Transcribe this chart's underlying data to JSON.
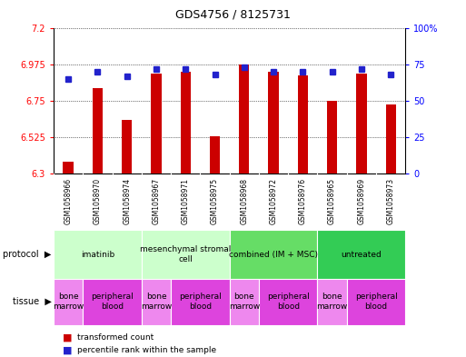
{
  "title": "GDS4756 / 8125731",
  "samples": [
    "GSM1058966",
    "GSM1058970",
    "GSM1058974",
    "GSM1058967",
    "GSM1058971",
    "GSM1058975",
    "GSM1058968",
    "GSM1058972",
    "GSM1058976",
    "GSM1058965",
    "GSM1058969",
    "GSM1058973"
  ],
  "transformed_count": [
    6.37,
    6.83,
    6.63,
    6.92,
    6.93,
    6.53,
    6.975,
    6.93,
    6.91,
    6.75,
    6.92,
    6.73
  ],
  "percentile_rank": [
    65,
    70,
    67,
    72,
    72,
    68,
    73,
    70,
    70,
    70,
    72,
    68
  ],
  "ylim_left": [
    6.3,
    7.2
  ],
  "ylim_right": [
    0,
    100
  ],
  "yticks_left": [
    6.3,
    6.525,
    6.75,
    6.975,
    7.2
  ],
  "yticks_left_labels": [
    "6.3",
    "6.525",
    "6.75",
    "6.975",
    "7.2"
  ],
  "yticks_right": [
    0,
    25,
    50,
    75,
    100
  ],
  "yticks_right_labels": [
    "0",
    "25",
    "50",
    "75",
    "100%"
  ],
  "bar_color": "#cc0000",
  "dot_color": "#2222cc",
  "protocols": [
    {
      "label": "imatinib",
      "start": 0,
      "end": 3,
      "color": "#ccffcc"
    },
    {
      "label": "mesenchymal stromal\ncell",
      "start": 3,
      "end": 6,
      "color": "#ccffcc"
    },
    {
      "label": "combined (IM + MSC)",
      "start": 6,
      "end": 9,
      "color": "#66dd66"
    },
    {
      "label": "untreated",
      "start": 9,
      "end": 12,
      "color": "#33cc55"
    }
  ],
  "tissues": [
    {
      "label": "bone\nmarrow",
      "start": 0,
      "end": 1,
      "color": "#ee88ee"
    },
    {
      "label": "peripheral\nblood",
      "start": 1,
      "end": 3,
      "color": "#dd44dd"
    },
    {
      "label": "bone\nmarrow",
      "start": 3,
      "end": 4,
      "color": "#ee88ee"
    },
    {
      "label": "peripheral\nblood",
      "start": 4,
      "end": 6,
      "color": "#dd44dd"
    },
    {
      "label": "bone\nmarrow",
      "start": 6,
      "end": 7,
      "color": "#ee88ee"
    },
    {
      "label": "peripheral\nblood",
      "start": 7,
      "end": 9,
      "color": "#dd44dd"
    },
    {
      "label": "bone\nmarrow",
      "start": 9,
      "end": 10,
      "color": "#ee88ee"
    },
    {
      "label": "peripheral\nblood",
      "start": 10,
      "end": 12,
      "color": "#dd44dd"
    }
  ],
  "grid_color": "#000000",
  "background_color": "#ffffff",
  "sample_bg_color": "#cccccc",
  "bar_width": 0.35
}
